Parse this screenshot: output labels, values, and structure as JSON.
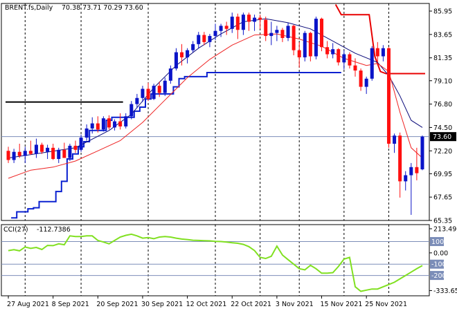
{
  "header": {
    "symbol_timeframe": "BRENT.fs,Daily",
    "ohlc": "70.38 73.71 70.29 73.60"
  },
  "indicator_label": {
    "name": "CCI(27)",
    "value": "-112.7386"
  },
  "colors": {
    "bull": "#0a14c8",
    "bear": "#ff1010",
    "ma_fast": "#ee2222",
    "ma_slow": "#0a0a7a",
    "upper_step": "#e80000",
    "lower_step": "#0a20d0",
    "resistance": "#000000",
    "cci": "#80e020",
    "level_line": "#7b8db8",
    "price_label_bg": "#000000"
  },
  "chart_data": [
    {
      "type": "candlestick",
      "ylim": [
        65.35,
        86.7
      ],
      "y_ticks": [
        "85.95",
        "83.65",
        "81.35",
        "79.10",
        "76.80",
        "74.50",
        "72.20",
        "69.95",
        "67.65",
        "65.35"
      ],
      "y_tick_values": [
        85.95,
        83.65,
        81.35,
        79.1,
        76.8,
        74.5,
        72.2,
        69.95,
        67.65,
        65.35
      ],
      "current_price": "73.60",
      "current_price_value": 73.6,
      "x_labels": [
        "27 Aug 2021",
        "8 Sep 2021",
        "20 Sep 2021",
        "30 Sep 2021",
        "12 Oct 2021",
        "22 Oct 2021",
        "3 Nov 2021",
        "15 Nov 2021",
        "25 Nov 2021"
      ],
      "x_label_index": [
        0,
        8,
        16,
        24,
        32,
        40,
        48,
        56,
        64
      ],
      "vgrid_index": [
        3,
        13,
        25,
        37,
        45,
        52,
        60,
        68
      ],
      "candles": [
        [
          72.2,
          72.6,
          71.0,
          71.3
        ],
        [
          71.3,
          72.4,
          71.0,
          72.1
        ],
        [
          72.1,
          72.9,
          71.5,
          71.7
        ],
        [
          71.7,
          72.6,
          71.0,
          72.2
        ],
        [
          72.2,
          73.2,
          71.8,
          71.9
        ],
        [
          71.9,
          73.4,
          71.5,
          72.8
        ],
        [
          72.8,
          73.0,
          71.9,
          72.1
        ],
        [
          72.1,
          72.8,
          71.4,
          72.5
        ],
        [
          72.5,
          72.9,
          71.3,
          71.4
        ],
        [
          71.4,
          72.5,
          71.0,
          72.3
        ],
        [
          72.3,
          73.0,
          71.6,
          71.5
        ],
        [
          71.5,
          72.9,
          71.2,
          72.7
        ],
        [
          72.7,
          73.2,
          72.0,
          72.3
        ],
        [
          72.3,
          73.8,
          72.1,
          73.5
        ],
        [
          73.5,
          74.8,
          73.2,
          74.4
        ],
        [
          74.4,
          75.5,
          73.9,
          74.9
        ],
        [
          74.9,
          75.6,
          74.0,
          74.3
        ],
        [
          74.3,
          75.6,
          74.1,
          75.4
        ],
        [
          75.4,
          75.7,
          74.3,
          74.5
        ],
        [
          74.5,
          75.3,
          74.2,
          75.1
        ],
        [
          75.1,
          75.9,
          74.3,
          74.6
        ],
        [
          74.6,
          75.9,
          74.4,
          75.6
        ],
        [
          75.6,
          77.1,
          75.3,
          76.8
        ],
        [
          76.8,
          77.8,
          76.4,
          77.4
        ],
        [
          77.4,
          78.6,
          77.0,
          78.3
        ],
        [
          78.3,
          78.9,
          77.1,
          77.3
        ],
        [
          77.3,
          78.8,
          77.2,
          78.6
        ],
        [
          78.6,
          79.0,
          77.5,
          77.9
        ],
        [
          77.9,
          79.4,
          77.6,
          79.1
        ],
        [
          79.1,
          80.6,
          78.8,
          80.3
        ],
        [
          80.3,
          82.3,
          80.1,
          81.9
        ],
        [
          81.9,
          82.7,
          80.6,
          81.4
        ],
        [
          81.4,
          82.3,
          80.8,
          82.1
        ],
        [
          82.1,
          83.0,
          81.9,
          82.7
        ],
        [
          82.7,
          83.9,
          82.3,
          83.6
        ],
        [
          83.6,
          83.9,
          82.6,
          82.9
        ],
        [
          82.9,
          83.7,
          82.4,
          83.5
        ],
        [
          83.5,
          84.7,
          83.1,
          84.0
        ],
        [
          84.0,
          84.7,
          83.4,
          84.5
        ],
        [
          84.5,
          84.9,
          83.6,
          84.2
        ],
        [
          84.2,
          85.8,
          83.8,
          85.4
        ],
        [
          85.4,
          85.7,
          83.2,
          84.1
        ],
        [
          84.1,
          85.8,
          83.6,
          85.6
        ],
        [
          85.6,
          85.8,
          84.0,
          84.9
        ],
        [
          84.9,
          85.6,
          84.0,
          85.3
        ],
        [
          85.3,
          85.6,
          84.2,
          85.1
        ],
        [
          85.1,
          85.4,
          83.0,
          83.5
        ],
        [
          83.5,
          84.9,
          82.6,
          83.8
        ],
        [
          83.8,
          84.5,
          83.0,
          84.1
        ],
        [
          84.1,
          84.3,
          82.9,
          83.3
        ],
        [
          83.3,
          84.8,
          83.0,
          84.5
        ],
        [
          84.5,
          84.6,
          81.6,
          82.1
        ],
        [
          82.1,
          82.9,
          80.4,
          81.4
        ],
        [
          81.4,
          84.0,
          81.0,
          83.8
        ],
        [
          83.8,
          83.9,
          81.0,
          81.5
        ],
        [
          81.5,
          85.4,
          81.2,
          85.2
        ],
        [
          85.2,
          85.3,
          82.0,
          82.4
        ],
        [
          82.4,
          83.0,
          81.3,
          81.7
        ],
        [
          81.7,
          82.8,
          81.3,
          82.2
        ],
        [
          82.2,
          82.3,
          80.6,
          80.9
        ],
        [
          80.9,
          82.1,
          80.2,
          81.7
        ],
        [
          81.7,
          81.9,
          80.3,
          80.6
        ],
        [
          80.6,
          81.3,
          79.5,
          80.1
        ],
        [
          80.1,
          80.3,
          78.1,
          78.5
        ],
        [
          78.5,
          79.5,
          77.8,
          79.3
        ],
        [
          79.3,
          82.5,
          79.1,
          82.3
        ],
        [
          82.3,
          82.9,
          80.9,
          81.5
        ],
        [
          81.5,
          82.6,
          81.0,
          82.3
        ],
        [
          82.3,
          82.4,
          72.5,
          72.9
        ],
        [
          72.9,
          73.9,
          72.0,
          73.7
        ],
        [
          73.7,
          74.0,
          67.6,
          69.2
        ],
        [
          69.2,
          70.2,
          68.3,
          69.8
        ],
        [
          69.8,
          71.0,
          65.9,
          70.6
        ],
        [
          70.6,
          72.5,
          69.3,
          70.0
        ],
        [
          70.38,
          73.71,
          70.29,
          73.6
        ]
      ],
      "ma_fast": [
        [
          0,
          69.5
        ],
        [
          4,
          70.3
        ],
        [
          8,
          70.6
        ],
        [
          12,
          71.2
        ],
        [
          16,
          72.2
        ],
        [
          20,
          73.2
        ],
        [
          24,
          75.0
        ],
        [
          28,
          77.2
        ],
        [
          32,
          79.4
        ],
        [
          36,
          81.2
        ],
        [
          40,
          82.6
        ],
        [
          44,
          83.6
        ],
        [
          48,
          83.7
        ],
        [
          52,
          83.2
        ],
        [
          56,
          82.5
        ],
        [
          60,
          81.3
        ],
        [
          64,
          80.6
        ],
        [
          66,
          80.8
        ],
        [
          68,
          80.0
        ],
        [
          70,
          76.0
        ],
        [
          72,
          72.5
        ],
        [
          74,
          71.5
        ]
      ],
      "ma_slow": [
        [
          0,
          71.5
        ],
        [
          6,
          72.0
        ],
        [
          12,
          72.5
        ],
        [
          18,
          74.2
        ],
        [
          22,
          75.8
        ],
        [
          26,
          78.4
        ],
        [
          30,
          80.6
        ],
        [
          34,
          82.3
        ],
        [
          38,
          83.7
        ],
        [
          42,
          84.9
        ],
        [
          46,
          85.2
        ],
        [
          50,
          84.8
        ],
        [
          54,
          84.2
        ],
        [
          58,
          83.0
        ],
        [
          62,
          81.8
        ],
        [
          66,
          80.9
        ],
        [
          68,
          79.6
        ],
        [
          70,
          77.6
        ],
        [
          72,
          75.2
        ],
        [
          74,
          74.5
        ]
      ],
      "upper_step": [
        [
          58.5,
          86.6
        ],
        [
          59.5,
          85.6
        ],
        [
          64.5,
          85.6
        ],
        [
          65.5,
          81.5
        ],
        [
          66.5,
          80.0
        ],
        [
          67.5,
          79.8
        ],
        [
          74.5,
          79.8
        ]
      ],
      "lower_step": [
        [
          0.5,
          65.6
        ],
        [
          1.5,
          66.2
        ],
        [
          2.5,
          66.2
        ],
        [
          3.5,
          66.5
        ],
        [
          4.5,
          66.6
        ],
        [
          5.5,
          67.2
        ],
        [
          7.5,
          67.2
        ],
        [
          8.5,
          68.2
        ],
        [
          9.5,
          69.2
        ],
        [
          10.5,
          71.4
        ],
        [
          11.5,
          71.9
        ],
        [
          12.5,
          72.6
        ],
        [
          13.5,
          73.1
        ],
        [
          14.5,
          74.2
        ],
        [
          16.5,
          74.2
        ],
        [
          17.5,
          75.2
        ],
        [
          18.5,
          75.5
        ],
        [
          21.5,
          75.5
        ],
        [
          22.5,
          76.1
        ],
        [
          23.5,
          76.5
        ],
        [
          24.5,
          77.3
        ],
        [
          25.5,
          77.8
        ],
        [
          28.5,
          77.8
        ],
        [
          29.5,
          78.5
        ],
        [
          30.5,
          79.3
        ],
        [
          31.5,
          79.5
        ],
        [
          34.5,
          79.5
        ],
        [
          35.5,
          79.9
        ],
        [
          58.5,
          79.9
        ],
        [
          59.5,
          79.9
        ]
      ],
      "resistance": [
        [
          -0.5,
          77.0
        ],
        [
          20.5,
          77.0
        ]
      ]
    },
    {
      "type": "line",
      "series_name": "CCI(27)",
      "ylim": [
        -380,
        250
      ],
      "y_ticks": [
        "213.4909",
        "100",
        "0.00",
        "-100",
        "-200",
        "-333.657"
      ],
      "y_tick_values": [
        213.49,
        100,
        0,
        -100,
        -200,
        -333.657
      ],
      "levels": [
        100,
        -100,
        -200
      ],
      "values": [
        [
          0,
          20
        ],
        [
          1,
          28
        ],
        [
          2,
          18
        ],
        [
          3,
          52
        ],
        [
          4,
          40
        ],
        [
          5,
          48
        ],
        [
          6,
          30
        ],
        [
          7,
          66
        ],
        [
          8,
          64
        ],
        [
          9,
          80
        ],
        [
          10,
          72
        ],
        [
          11,
          150
        ],
        [
          12,
          145
        ],
        [
          13,
          145
        ],
        [
          14,
          150
        ],
        [
          15,
          150
        ],
        [
          16,
          110
        ],
        [
          17,
          96
        ],
        [
          18,
          80
        ],
        [
          19,
          110
        ],
        [
          20,
          140
        ],
        [
          21,
          155
        ],
        [
          22,
          165
        ],
        [
          23,
          150
        ],
        [
          24,
          130
        ],
        [
          25,
          135
        ],
        [
          26,
          125
        ],
        [
          27,
          140
        ],
        [
          28,
          145
        ],
        [
          29,
          140
        ],
        [
          30,
          130
        ],
        [
          31,
          122
        ],
        [
          32,
          118
        ],
        [
          33,
          112
        ],
        [
          34,
          110
        ],
        [
          35,
          108
        ],
        [
          36,
          106
        ],
        [
          37,
          102
        ],
        [
          38,
          100
        ],
        [
          39,
          95
        ],
        [
          40,
          90
        ],
        [
          41,
          85
        ],
        [
          42,
          75
        ],
        [
          43,
          55
        ],
        [
          44,
          20
        ],
        [
          45,
          -40
        ],
        [
          46,
          -50
        ],
        [
          47,
          -30
        ],
        [
          48,
          60
        ],
        [
          49,
          -20
        ],
        [
          50,
          -60
        ],
        [
          51,
          -100
        ],
        [
          52,
          -140
        ],
        [
          53,
          -150
        ],
        [
          54,
          -110
        ],
        [
          55,
          -140
        ],
        [
          56,
          -180
        ],
        [
          57,
          -180
        ],
        [
          58,
          -175
        ],
        [
          59,
          -120
        ],
        [
          60,
          -55
        ],
        [
          61,
          -40
        ],
        [
          62,
          -300
        ],
        [
          63,
          -340
        ],
        [
          64,
          -330
        ],
        [
          65,
          -320
        ],
        [
          66,
          -320
        ],
        [
          67,
          -300
        ],
        [
          68,
          -280
        ],
        [
          69,
          -260
        ],
        [
          70,
          -230
        ],
        [
          71,
          -200
        ],
        [
          72,
          -170
        ],
        [
          73,
          -140
        ],
        [
          74,
          -112.74
        ]
      ]
    }
  ]
}
